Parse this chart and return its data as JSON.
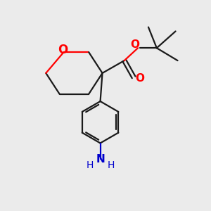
{
  "background_color": "#ebebeb",
  "bond_color": "#1a1a1a",
  "oxygen_color": "#ff0000",
  "nitrogen_color": "#0000cc",
  "bond_width": 1.6,
  "figsize": [
    3.0,
    3.0
  ],
  "dpi": 100,
  "xlim": [
    0,
    10
  ],
  "ylim": [
    0,
    10
  ]
}
